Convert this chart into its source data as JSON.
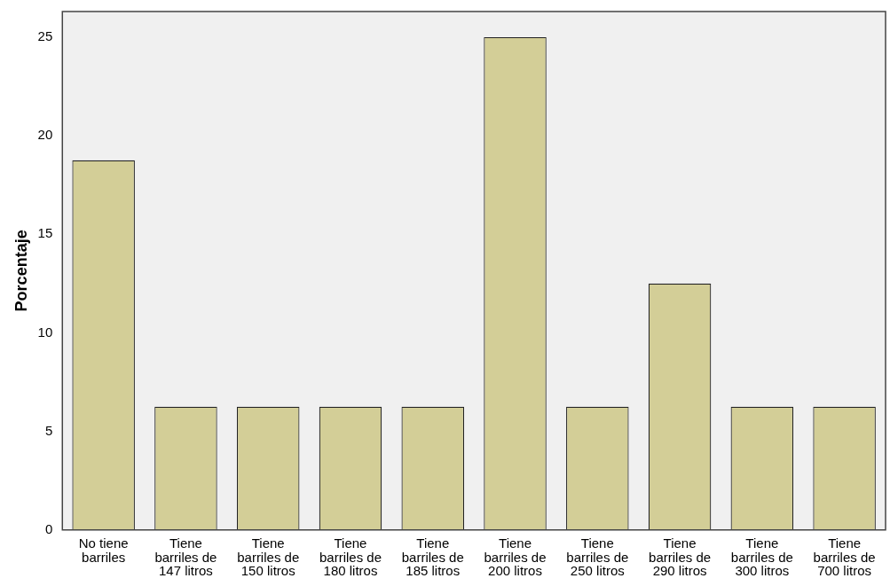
{
  "chart_data": {
    "type": "bar",
    "ylabel": "Porcentaje",
    "categories": [
      "No tiene barriles",
      "Tiene barriles de 147 litros",
      "Tiene barriles de 150 litros",
      "Tiene barriles de 180 litros",
      "Tiene barriles de 185 litros",
      "Tiene barriles de 200 litros",
      "Tiene barriles de 250 litros",
      "Tiene barriles de 290 litros",
      "Tiene barriles de 300 litros",
      "Tiene barriles de 700 litros"
    ],
    "values": [
      18.75,
      6.25,
      6.25,
      6.25,
      6.25,
      25,
      6.25,
      12.5,
      6.25,
      6.25
    ],
    "color": "#d3ce97",
    "ylim": [
      0,
      26.3
    ],
    "yticks": [
      0,
      5,
      10,
      15,
      20,
      25
    ],
    "grid": false,
    "legend": false
  }
}
